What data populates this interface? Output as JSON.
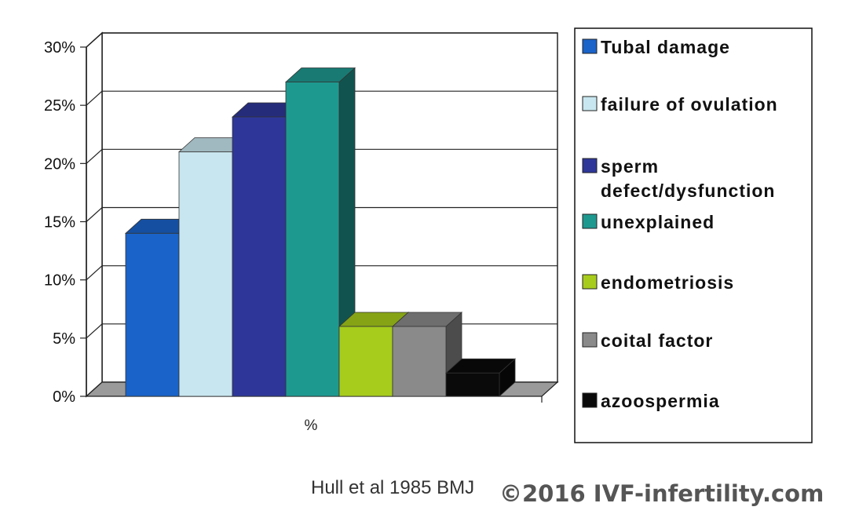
{
  "chart_data": {
    "type": "bar",
    "categories": [
      "%"
    ],
    "series": [
      {
        "name": "Tubal damage",
        "values": [
          14
        ],
        "color": "#1a63c9"
      },
      {
        "name": "failure of ovulation",
        "values": [
          21
        ],
        "color": "#c8e6ef"
      },
      {
        "name": "sperm defect/dysfunction",
        "values": [
          24
        ],
        "color": "#2e3799"
      },
      {
        "name": "unexplained",
        "values": [
          27
        ],
        "color": "#1e9990"
      },
      {
        "name": "endometriosis",
        "values": [
          6
        ],
        "color": "#a7cc1c"
      },
      {
        "name": "coital factor",
        "values": [
          6
        ],
        "color": "#8a8a8a"
      },
      {
        "name": "azoospermia",
        "values": [
          2
        ],
        "color": "#0a0a0a"
      }
    ],
    "legend_lines": [
      [
        "Tubal damage"
      ],
      [
        "failure of ovulation"
      ],
      [
        "sperm",
        "defect/dysfunction"
      ],
      [
        "unexplained"
      ],
      [
        "endometriosis"
      ],
      [
        "coital factor"
      ],
      [
        "azoospermia"
      ]
    ],
    "y_ticks": [
      "0%",
      "5%",
      "10%",
      "15%",
      "20%",
      "25%",
      "30%"
    ],
    "ylim": [
      0,
      30
    ],
    "grid": true,
    "legend_position": "right",
    "style": "3d-bar"
  },
  "caption": "Hull et al 1985 BMJ",
  "watermark": "©2016 IVF-infertility.com"
}
